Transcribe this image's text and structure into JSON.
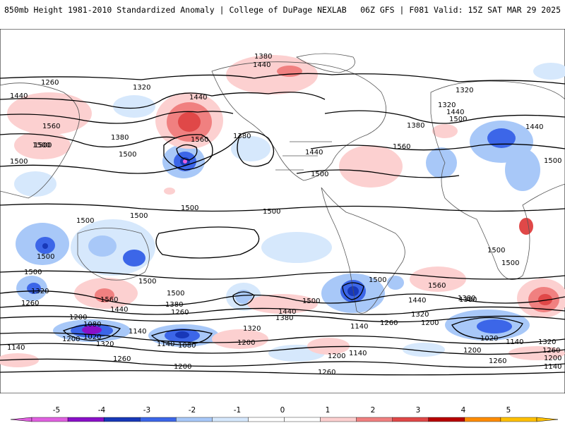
{
  "header": {
    "left_title": "850mb Height 1981-2010 Standardized Anomaly | College of DuPage NEXLAB",
    "right_title": "06Z GFS | F081 Valid: 15Z SAT MAR 29 2025"
  },
  "colorbar": {
    "ticks": [
      "-5",
      "-4",
      "-3",
      "-2",
      "-1",
      "0",
      "1",
      "2",
      "3",
      "4",
      "5"
    ],
    "colors": [
      "#e060e0",
      "#8a10c8",
      "#1838b8",
      "#3c66e8",
      "#a8c8f8",
      "#d6e8fc",
      "#ffffff",
      "#ffffff",
      "#fcd0d0",
      "#f08080",
      "#e04848",
      "#b80000",
      "#ff8c00",
      "#ffc000"
    ]
  },
  "contour_labels": [
    {
      "text": "1380"
    },
    {
      "text": "1440"
    },
    {
      "text": "1260"
    },
    {
      "text": "1320"
    },
    {
      "text": "1440"
    },
    {
      "text": "1560"
    },
    {
      "text": "1500"
    },
    {
      "text": "1440"
    },
    {
      "text": "1560"
    },
    {
      "text": "1380"
    },
    {
      "text": "1380"
    },
    {
      "text": "1500"
    },
    {
      "text": "1440"
    },
    {
      "text": "1500"
    },
    {
      "text": "1560"
    },
    {
      "text": "1320"
    },
    {
      "text": "1320"
    },
    {
      "text": "1440"
    },
    {
      "text": "1500"
    },
    {
      "text": "1380"
    },
    {
      "text": "1440"
    },
    {
      "text": "1500"
    },
    {
      "text": "1500"
    },
    {
      "text": "1500"
    },
    {
      "text": "1500"
    },
    {
      "text": "1500"
    },
    {
      "text": "1500"
    },
    {
      "text": "1500"
    },
    {
      "text": "1500"
    },
    {
      "text": "1500"
    },
    {
      "text": "1500"
    },
    {
      "text": "1320"
    },
    {
      "text": "1260"
    },
    {
      "text": "1560"
    },
    {
      "text": "1500"
    },
    {
      "text": "1440"
    },
    {
      "text": "1380"
    },
    {
      "text": "1260"
    },
    {
      "text": "1200"
    },
    {
      "text": "1080"
    },
    {
      "text": "1020"
    },
    {
      "text": "1200"
    },
    {
      "text": "1140"
    },
    {
      "text": "1320"
    },
    {
      "text": "1140"
    },
    {
      "text": "1080"
    },
    {
      "text": "1140"
    },
    {
      "text": "1260"
    },
    {
      "text": "1200"
    },
    {
      "text": "1500"
    },
    {
      "text": "1440"
    },
    {
      "text": "1380"
    },
    {
      "text": "1320"
    },
    {
      "text": "1200"
    },
    {
      "text": "1500"
    },
    {
      "text": "1560"
    },
    {
      "text": "1440"
    },
    {
      "text": "1320"
    },
    {
      "text": "1260"
    },
    {
      "text": "1140"
    },
    {
      "text": "1200"
    },
    {
      "text": "1380"
    },
    {
      "text": "1200"
    },
    {
      "text": "1140"
    },
    {
      "text": "1260"
    },
    {
      "text": "1020"
    },
    {
      "text": "1140"
    },
    {
      "text": "1320"
    },
    {
      "text": "1200"
    },
    {
      "text": "1260"
    },
    {
      "text": "1260"
    },
    {
      "text": "1200"
    },
    {
      "text": "1140"
    },
    {
      "text": "1380"
    },
    {
      "text": "1500"
    },
    {
      "text": "1500"
    }
  ]
}
